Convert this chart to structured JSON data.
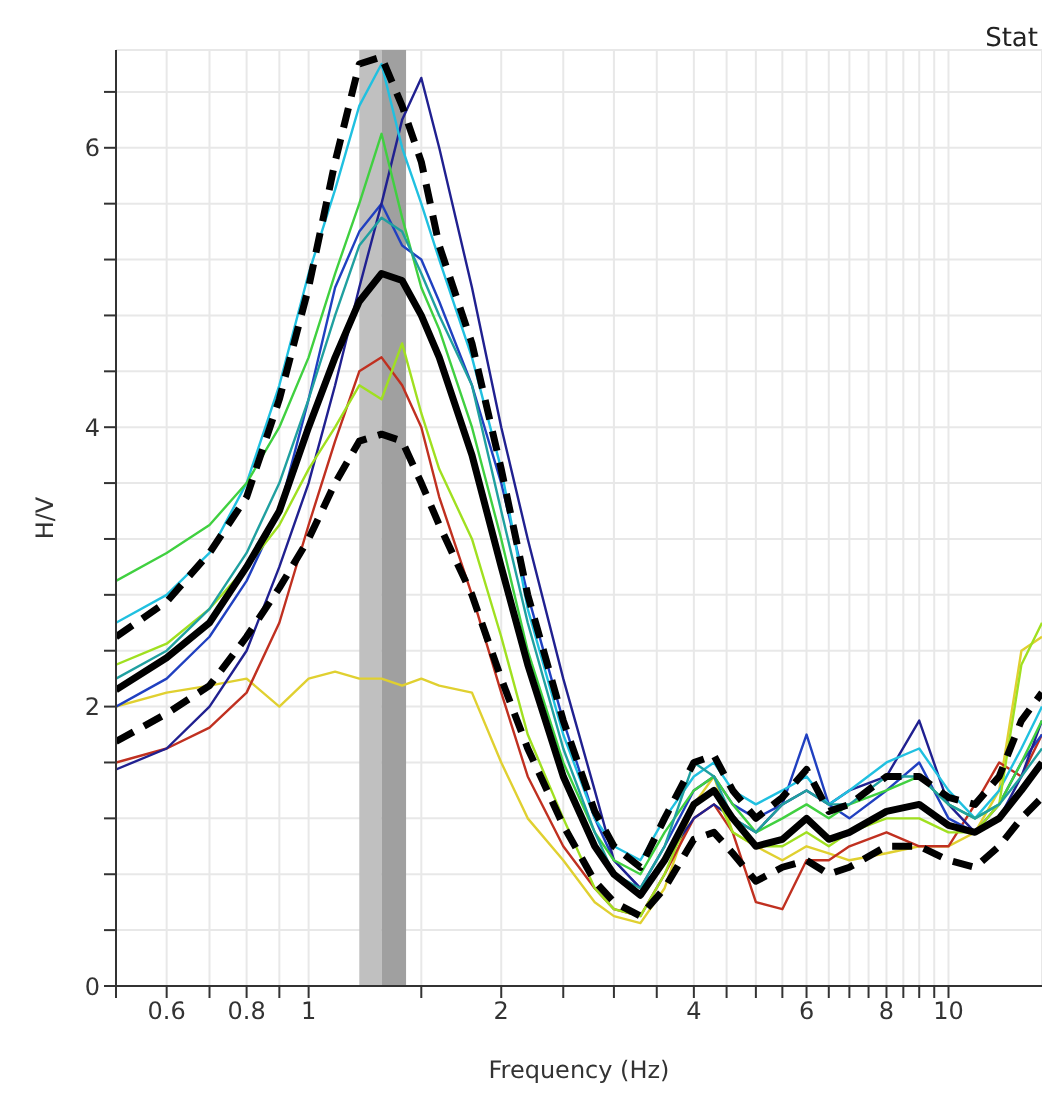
{
  "chart_data": {
    "type": "line",
    "title": "Stat",
    "xlabel": "Frequency (Hz)",
    "ylabel": "H/V",
    "log": "x",
    "grid": true,
    "marker": "none",
    "xlim": [
      0.5,
      14
    ],
    "ylim": [
      0,
      6.7
    ],
    "xticks": [
      {
        "value": 0.5,
        "label": null
      },
      0.6,
      {
        "value": 0.7,
        "label": null
      },
      0.8,
      {
        "value": 0.9,
        "label": null
      },
      1,
      {
        "value": 1.5,
        "label": null
      },
      2,
      {
        "value": 2.5,
        "label": null
      },
      {
        "value": 3,
        "label": null
      },
      {
        "value": 3.5,
        "label": null
      },
      4,
      {
        "value": 4.5,
        "label": null
      },
      {
        "value": 5,
        "label": null
      },
      {
        "value": 5.5,
        "label": null
      },
      6,
      {
        "value": 6.5,
        "label": null
      },
      {
        "value": 7,
        "label": null
      },
      {
        "value": 7.5,
        "label": null
      },
      8,
      {
        "value": 8.5,
        "label": null
      },
      {
        "value": 9,
        "label": null
      },
      {
        "value": 9.5,
        "label": null
      },
      10
    ],
    "yticks": [
      0,
      {
        "value": 0.4,
        "label": null
      },
      {
        "value": 0.8,
        "label": null
      },
      {
        "value": 1.2,
        "label": null
      },
      {
        "value": 1.6,
        "label": null
      },
      2,
      {
        "value": 2.4,
        "label": null
      },
      {
        "value": 2.8,
        "label": null
      },
      {
        "value": 3.2,
        "label": null
      },
      {
        "value": 3.6,
        "label": null
      },
      4,
      {
        "value": 4.4,
        "label": null
      },
      {
        "value": 4.8,
        "label": null
      },
      {
        "value": 5.2,
        "label": null
      },
      {
        "value": 5.6,
        "label": null
      },
      6,
      {
        "value": 6.4,
        "label": null
      }
    ],
    "bands": [
      {
        "axis": "x",
        "from": 1.2,
        "to": 1.3,
        "color": "#c0c0c0"
      },
      {
        "axis": "x",
        "from": 1.3,
        "to": 1.42,
        "color": "#a0a0a0"
      }
    ],
    "x": [
      0.5,
      0.6,
      0.7,
      0.8,
      0.9,
      1,
      1.1,
      1.2,
      1.3,
      1.4,
      1.5,
      1.6,
      1.8,
      2,
      2.2,
      2.5,
      2.8,
      3,
      3.3,
      3.6,
      4,
      4.3,
      4.6,
      5,
      5.5,
      6,
      6.5,
      7,
      8,
      9,
      10,
      11,
      12,
      13,
      14
    ],
    "series": [
      {
        "color": "#e0d030",
        "values": [
          2.0,
          2.1,
          2.15,
          2.2,
          2.0,
          2.2,
          2.25,
          2.2,
          2.2,
          2.15,
          2.2,
          2.15,
          2.1,
          1.6,
          1.2,
          0.9,
          0.6,
          0.5,
          0.45,
          0.7,
          1.3,
          1.5,
          1.1,
          1.0,
          0.9,
          1.0,
          0.95,
          0.9,
          0.95,
          1.0,
          1.0,
          1.1,
          1.4,
          2.4,
          2.5
        ]
      },
      {
        "color": "#c03020",
        "values": [
          1.6,
          1.7,
          1.85,
          2.1,
          2.6,
          3.3,
          3.9,
          4.4,
          4.5,
          4.3,
          4.0,
          3.5,
          2.8,
          2.1,
          1.5,
          1.0,
          0.7,
          0.55,
          0.5,
          0.8,
          1.2,
          1.3,
          1.1,
          0.6,
          0.55,
          0.9,
          0.9,
          1.0,
          1.1,
          1.0,
          1.0,
          1.3,
          1.6,
          1.5,
          1.8
        ]
      },
      {
        "color": "#2040c0",
        "values": [
          2.0,
          2.2,
          2.5,
          2.9,
          3.4,
          4.2,
          5.0,
          5.4,
          5.6,
          5.3,
          5.2,
          4.9,
          4.3,
          3.6,
          2.8,
          1.9,
          1.2,
          0.9,
          0.7,
          1.0,
          1.4,
          1.5,
          1.3,
          1.2,
          1.3,
          1.8,
          1.3,
          1.2,
          1.4,
          1.6,
          1.2,
          1.1,
          1.3,
          1.6,
          1.8
        ]
      },
      {
        "color": "#202090",
        "values": [
          1.55,
          1.7,
          2.0,
          2.4,
          3.0,
          3.6,
          4.3,
          5.0,
          5.6,
          6.2,
          6.5,
          6.0,
          5.0,
          4.0,
          3.2,
          2.2,
          1.4,
          0.9,
          0.7,
          0.9,
          1.2,
          1.3,
          1.2,
          1.1,
          1.3,
          1.4,
          1.3,
          1.4,
          1.5,
          1.9,
          1.3,
          1.1,
          1.2,
          1.5,
          1.9
        ]
      },
      {
        "color": "#20c0e0",
        "values": [
          2.6,
          2.8,
          3.1,
          3.6,
          4.3,
          5.1,
          5.7,
          6.3,
          6.6,
          6.0,
          5.6,
          5.2,
          4.5,
          3.7,
          2.7,
          1.8,
          1.2,
          1.0,
          0.9,
          1.2,
          1.5,
          1.6,
          1.4,
          1.3,
          1.4,
          1.5,
          1.3,
          1.4,
          1.6,
          1.7,
          1.4,
          1.2,
          1.4,
          1.7,
          2.0
        ]
      },
      {
        "color": "#40d040",
        "values": [
          2.9,
          3.1,
          3.3,
          3.6,
          4.0,
          4.5,
          5.1,
          5.6,
          6.1,
          5.5,
          5.0,
          4.7,
          4.0,
          3.2,
          2.4,
          1.6,
          1.1,
          0.9,
          0.8,
          1.1,
          1.4,
          1.5,
          1.3,
          1.1,
          1.2,
          1.3,
          1.2,
          1.3,
          1.4,
          1.5,
          1.3,
          1.2,
          1.3,
          1.6,
          1.9
        ]
      },
      {
        "color": "#a0e020",
        "values": [
          2.3,
          2.45,
          2.7,
          3.0,
          3.3,
          3.7,
          4.0,
          4.3,
          4.2,
          4.6,
          4.1,
          3.7,
          3.2,
          2.5,
          1.8,
          1.2,
          0.7,
          0.55,
          0.5,
          0.8,
          1.3,
          1.4,
          1.1,
          1.0,
          1.0,
          1.1,
          1.0,
          1.1,
          1.2,
          1.2,
          1.1,
          1.1,
          1.3,
          2.3,
          2.6
        ]
      },
      {
        "color": "#20a0a0",
        "values": [
          2.2,
          2.4,
          2.7,
          3.1,
          3.6,
          4.2,
          4.8,
          5.3,
          5.5,
          5.4,
          5.1,
          4.8,
          4.3,
          3.4,
          2.6,
          1.7,
          1.1,
          0.8,
          0.7,
          1.0,
          1.6,
          1.5,
          1.2,
          1.1,
          1.3,
          1.4,
          1.3,
          1.3,
          1.5,
          1.5,
          1.3,
          1.2,
          1.3,
          1.5,
          1.7
        ]
      },
      {
        "color": "#000000",
        "line_style": "solid",
        "values": [
          2.12,
          2.35,
          2.6,
          3.0,
          3.4,
          4.0,
          4.5,
          4.9,
          5.1,
          5.05,
          4.8,
          4.5,
          3.8,
          3.0,
          2.3,
          1.5,
          1.0,
          0.8,
          0.65,
          0.9,
          1.3,
          1.4,
          1.2,
          1.0,
          1.05,
          1.2,
          1.05,
          1.1,
          1.25,
          1.3,
          1.15,
          1.1,
          1.2,
          1.4,
          1.6
        ]
      },
      {
        "color": "#000000",
        "line_style": "dashed",
        "values": [
          2.5,
          2.75,
          3.1,
          3.5,
          4.2,
          5.0,
          5.9,
          6.6,
          6.65,
          6.3,
          5.9,
          5.3,
          4.6,
          3.7,
          2.8,
          1.9,
          1.25,
          1.0,
          0.85,
          1.2,
          1.6,
          1.65,
          1.4,
          1.2,
          1.35,
          1.55,
          1.25,
          1.3,
          1.5,
          1.5,
          1.35,
          1.3,
          1.5,
          1.9,
          2.1
        ]
      },
      {
        "color": "#000000",
        "line_style": "dashed",
        "values": [
          1.75,
          1.95,
          2.15,
          2.5,
          2.85,
          3.2,
          3.6,
          3.9,
          3.95,
          3.9,
          3.6,
          3.3,
          2.8,
          2.2,
          1.7,
          1.15,
          0.75,
          0.6,
          0.5,
          0.7,
          1.05,
          1.1,
          0.95,
          0.75,
          0.85,
          0.9,
          0.8,
          0.85,
          1.0,
          1.0,
          0.9,
          0.85,
          1.0,
          1.2,
          1.35
        ]
      }
    ]
  }
}
